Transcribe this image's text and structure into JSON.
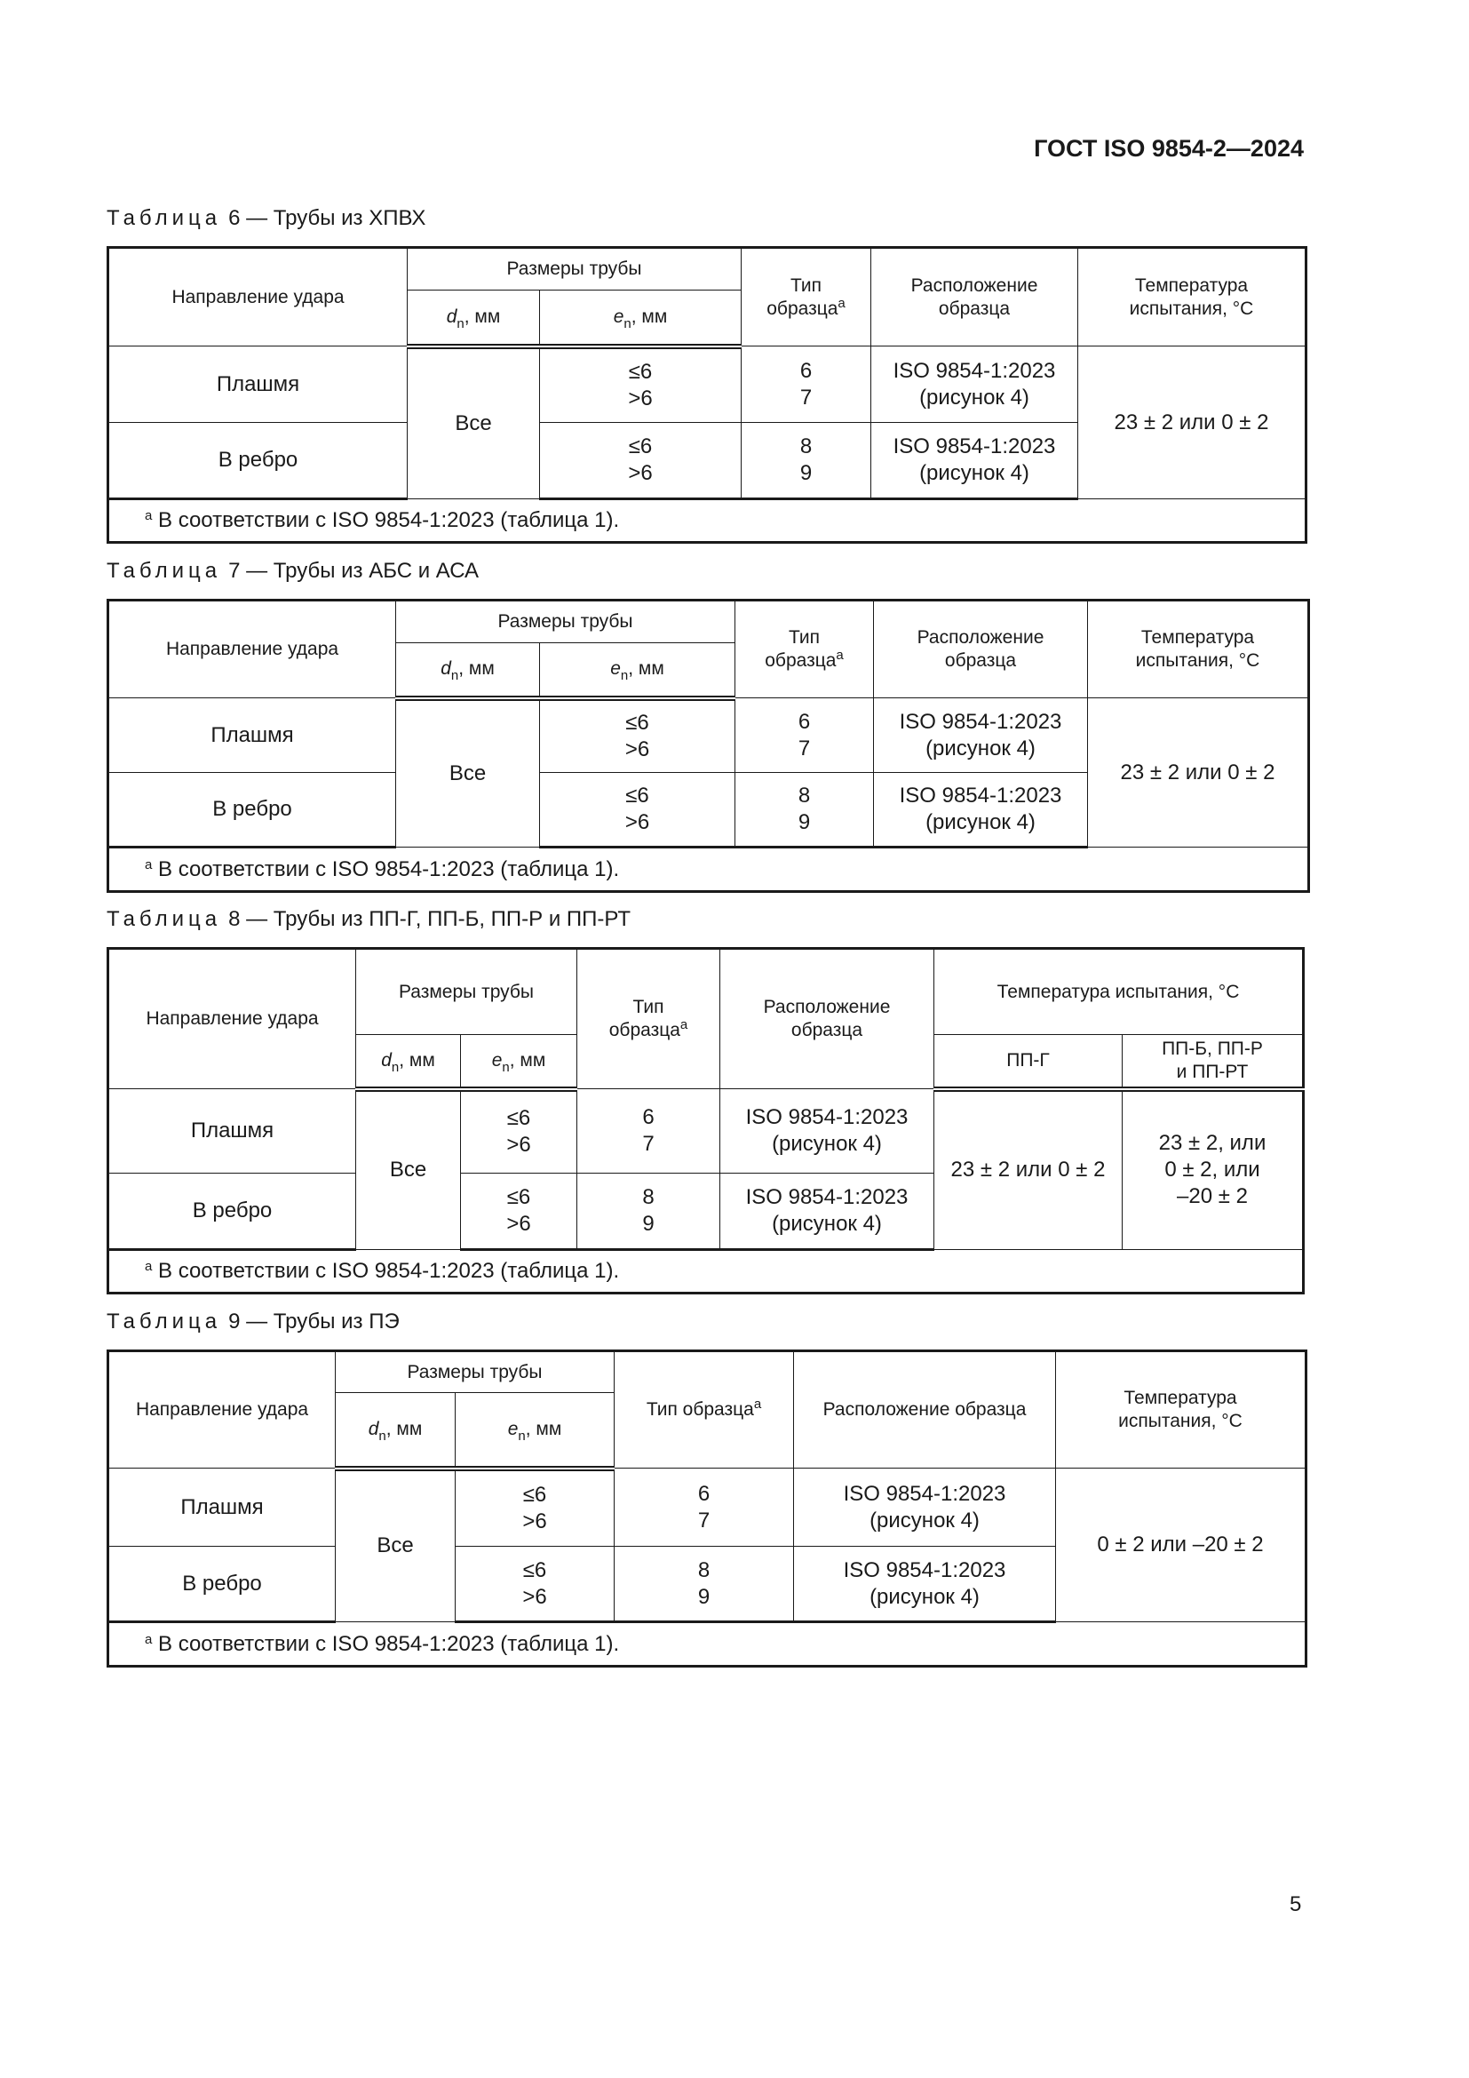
{
  "header": {
    "document_code": "ГОСТ ISO 9854-2—2024"
  },
  "page_number": "5",
  "tables": [
    {
      "caption_label": "Таблица",
      "caption_number": "6",
      "caption_text": "— Трубы из ХПВХ",
      "head": {
        "direction": "Направление удара",
        "sizes": "Размеры трубы",
        "dn": "d",
        "en": "e",
        "sub": "n",
        "unit": ", мм",
        "type": "Тип\nобразца",
        "sup": "a",
        "location": "Расположение\nобразца",
        "temperature": "Температура\nиспытания, °C"
      },
      "dn_value": "Все",
      "rows": [
        {
          "direction": "Плашмя",
          "en": "≤6\n>6",
          "type": "6\n7",
          "location": "ISO 9854-1:2023\n(рисунок 4)"
        },
        {
          "direction": "В ребро",
          "en": "≤6\n>6",
          "type": "8\n9",
          "location": "ISO 9854-1:2023\n(рисунок 4)"
        }
      ],
      "temperature_value": "23 ± 2 или 0 ± 2",
      "footnote_mark": "a",
      "footnote": "В соответствии с ISO 9854-1:2023 (таблица 1)."
    },
    {
      "caption_label": "Таблица",
      "caption_number": "7",
      "caption_text": "— Трубы из АБС и АСА",
      "head": {
        "direction": "Направление удара",
        "sizes": "Размеры трубы",
        "dn": "d",
        "en": "e",
        "sub": "n",
        "unit": ", мм",
        "type": "Тип\nобразца",
        "sup": "a",
        "location": "Расположение\nобразца",
        "temperature": "Температура\nиспытания, °C"
      },
      "dn_value": "Все",
      "rows": [
        {
          "direction": "Плашмя",
          "en": "≤6\n>6",
          "type": "6\n7",
          "location": "ISO 9854-1:2023\n(рисунок 4)"
        },
        {
          "direction": "В ребро",
          "en": "≤6\n>6",
          "type": "8\n9",
          "location": "ISO 9854-1:2023\n(рисунок 4)"
        }
      ],
      "temperature_value": "23 ± 2 или 0 ± 2",
      "footnote_mark": "a",
      "footnote": "В соответствии с ISO 9854-1:2023 (таблица 1)."
    },
    {
      "caption_label": "Таблица",
      "caption_number": "8",
      "caption_text": "— Трубы из ПП-Г, ПП-Б, ПП-Р и ПП-РТ",
      "head": {
        "direction": "Направление удара",
        "sizes": "Размеры трубы",
        "dn": "d",
        "en": "e",
        "sub": "n",
        "unit": ", мм",
        "type": "Тип\nобразца",
        "sup": "a",
        "location": "Расположение\nобразца",
        "temperature": "Температура испытания, °C",
        "temp_sub1": "ПП-Г",
        "temp_sub2": "ПП-Б, ПП-Р\nи  ПП-РТ"
      },
      "dn_value": "Все",
      "rows": [
        {
          "direction": "Плашмя",
          "en": "≤6\n>6",
          "type": "6\n7",
          "location": "ISO 9854-1:2023\n(рисунок 4)"
        },
        {
          "direction": "В ребро",
          "en": "≤6\n>6",
          "type": "8\n9",
          "location": "ISO 9854-1:2023\n(рисунок 4)"
        }
      ],
      "temperature_value": "23 ± 2 или 0 ± 2",
      "temperature_value2": "23 ± 2, или\n0 ± 2, или\n–20 ± 2",
      "footnote_mark": "a",
      "footnote": "В соответствии с ISO 9854-1:2023 (таблица 1)."
    },
    {
      "caption_label": "Таблица",
      "caption_number": "9",
      "caption_text": "— Трубы из ПЭ",
      "head": {
        "direction": "Направление удара",
        "sizes": "Размеры трубы",
        "dn": "d",
        "en": "e",
        "sub": "n",
        "unit": ", мм",
        "type": "Тип образца",
        "sup": "a",
        "location": "Расположение образца",
        "temperature": "Температура\nиспытания, °C"
      },
      "dn_value": "Все",
      "rows": [
        {
          "direction": "Плашмя",
          "en": "≤6\n>6",
          "type": "6\n7",
          "location": "ISO 9854-1:2023\n(рисунок 4)"
        },
        {
          "direction": "В ребро",
          "en": "≤6\n>6",
          "type": "8\n9",
          "location": "ISO 9854-1:2023\n(рисунок 4)"
        }
      ],
      "temperature_value": "0 ± 2 или –20 ± 2",
      "footnote_mark": "a",
      "footnote": "В соответствии с ISO 9854-1:2023 (таблица 1)."
    }
  ]
}
